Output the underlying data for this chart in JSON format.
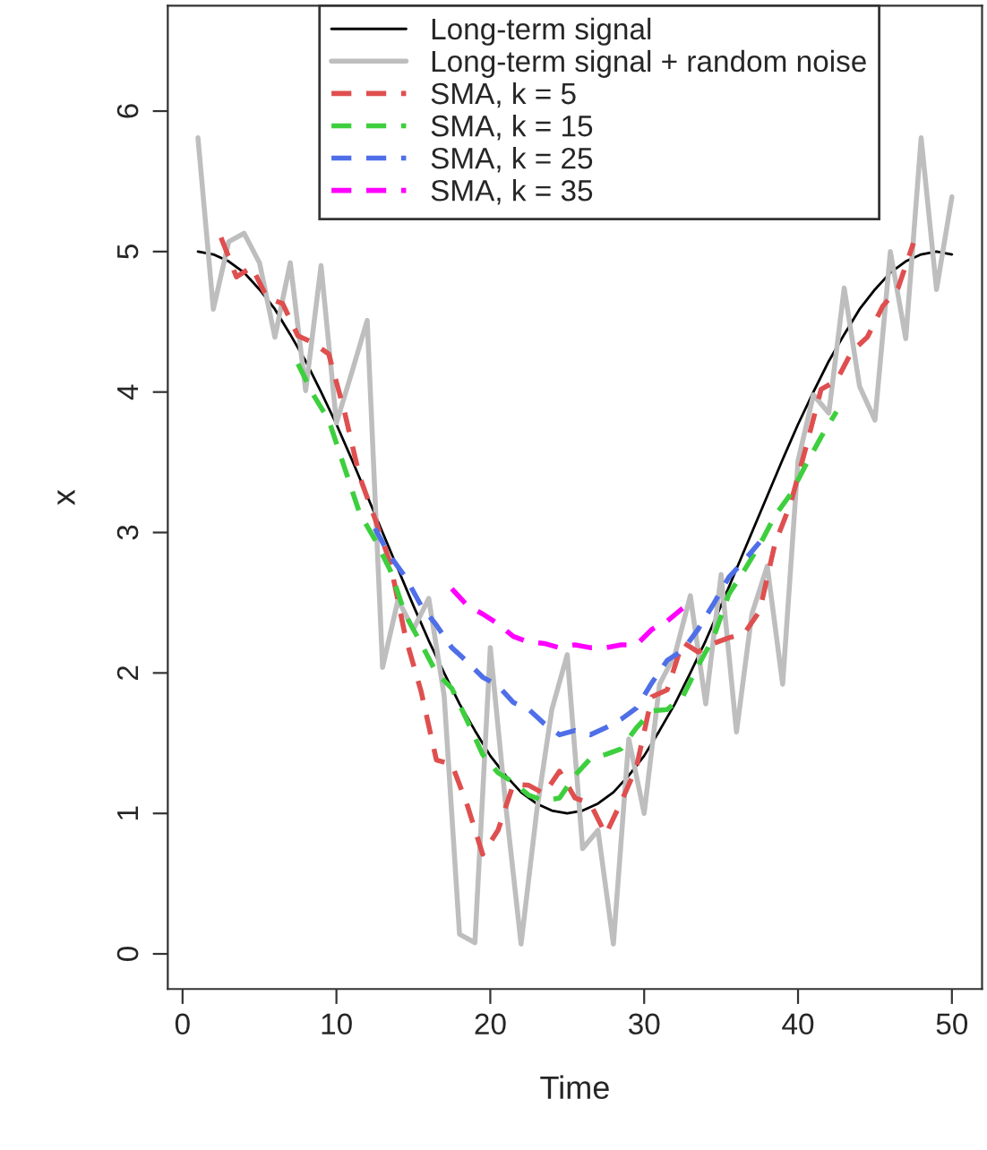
{
  "chart_data": {
    "type": "line",
    "xlabel": "Time",
    "ylabel": "x",
    "x": [
      1,
      2,
      3,
      4,
      5,
      6,
      7,
      8,
      9,
      10,
      11,
      12,
      13,
      14,
      15,
      16,
      17,
      18,
      19,
      20,
      21,
      22,
      23,
      24,
      25,
      26,
      27,
      28,
      29,
      30,
      31,
      32,
      33,
      34,
      35,
      36,
      37,
      38,
      39,
      40,
      41,
      42,
      43,
      44,
      45,
      46,
      47,
      48,
      49,
      50
    ],
    "xlim": [
      -0.96,
      51.96
    ],
    "xticks": [
      0,
      10,
      20,
      30,
      40,
      50
    ],
    "ylim": [
      -0.25,
      6.75
    ],
    "yticks": [
      0,
      1,
      2,
      3,
      4,
      5,
      6
    ],
    "grid": false,
    "legend": "top",
    "marker": "none",
    "series": [
      {
        "name": "Long-term signal",
        "color": "#000000",
        "line_style": "solid",
        "values": [
          5.0,
          4.98,
          4.93,
          4.85,
          4.73,
          4.59,
          4.41,
          4.22,
          4.0,
          3.77,
          3.52,
          3.26,
          3.0,
          2.74,
          2.48,
          2.23,
          2.0,
          1.78,
          1.59,
          1.41,
          1.27,
          1.15,
          1.07,
          1.02,
          1.0,
          1.02,
          1.07,
          1.15,
          1.27,
          1.41,
          1.59,
          1.78,
          2.0,
          2.23,
          2.48,
          2.74,
          3.0,
          3.26,
          3.52,
          3.77,
          4.0,
          4.22,
          4.41,
          4.59,
          4.73,
          4.85,
          4.93,
          4.98,
          5.0,
          4.98
        ]
      },
      {
        "name": "Long-term signal + random noise",
        "color": "#bebebe",
        "line_style": "solid",
        "values": [
          5.81,
          4.59,
          5.07,
          5.13,
          4.92,
          4.39,
          4.92,
          4.01,
          4.9,
          3.78,
          4.14,
          4.51,
          2.04,
          2.52,
          2.31,
          2.53,
          1.84,
          0.14,
          0.08,
          2.18,
          1.06,
          0.07,
          1.0,
          1.74,
          2.13,
          0.75,
          0.88,
          0.07,
          1.53,
          1.0,
          1.92,
          2.13,
          2.55,
          1.78,
          2.7,
          1.58,
          2.42,
          2.76,
          1.92,
          3.51,
          3.98,
          3.85,
          4.74,
          4.04,
          3.8,
          5.0,
          4.38,
          5.81,
          4.73,
          5.39
        ]
      },
      {
        "name": "SMA, k = 5",
        "color": "#df4f4f",
        "line_style": "dashed",
        "x": [
          2.5,
          3.5,
          4.5,
          5.5,
          6.5,
          7.5,
          8.5,
          9.5,
          10.5,
          11.5,
          12.5,
          13.5,
          14.5,
          15.5,
          16.5,
          17.5,
          18.5,
          19.5,
          20.5,
          21.5,
          22.5,
          23.5,
          24.5,
          25.5,
          26.5,
          27.5,
          28.5,
          29.5,
          30.5,
          31.5,
          32.5,
          33.5,
          34.5,
          35.5,
          36.5,
          37.5,
          38.5,
          39.5,
          40.5,
          41.5,
          42.5,
          43.5,
          44.5,
          45.5,
          46.5,
          47.5
        ],
        "values": [
          5.1,
          4.82,
          4.89,
          4.67,
          4.63,
          4.4,
          4.35,
          4.27,
          3.87,
          3.4,
          3.1,
          2.78,
          2.25,
          1.87,
          1.38,
          1.35,
          1.06,
          0.71,
          0.88,
          1.21,
          1.2,
          1.14,
          1.3,
          1.11,
          1.07,
          0.85,
          1.08,
          1.33,
          1.83,
          1.88,
          2.22,
          2.15,
          2.21,
          2.25,
          2.28,
          2.44,
          2.92,
          3.2,
          3.6,
          4.02,
          4.08,
          4.29,
          4.39,
          4.61,
          4.74,
          5.06
        ]
      },
      {
        "name": "SMA, k = 15",
        "color": "#3ecf3e",
        "line_style": "dashed",
        "x": [
          7.5,
          8.5,
          9.5,
          10.5,
          11.5,
          12.5,
          13.5,
          14.5,
          15.5,
          16.5,
          17.5,
          18.5,
          19.5,
          20.5,
          21.5,
          22.5,
          23.5,
          24.5,
          25.5,
          26.5,
          27.5,
          28.5,
          29.5,
          30.5,
          31.5,
          32.5,
          33.5,
          34.5,
          35.5,
          36.5,
          37.5,
          38.5,
          39.5,
          40.5,
          41.5,
          42.5
        ],
        "values": [
          4.2,
          3.98,
          3.8,
          3.47,
          3.14,
          2.95,
          2.73,
          2.41,
          2.21,
          2.0,
          1.89,
          1.66,
          1.42,
          1.29,
          1.22,
          1.13,
          1.09,
          1.11,
          1.27,
          1.39,
          1.42,
          1.46,
          1.61,
          1.73,
          1.74,
          1.83,
          2.05,
          2.25,
          2.56,
          2.73,
          2.91,
          3.12,
          3.27,
          3.48,
          3.68,
          3.86
        ]
      },
      {
        "name": "SMA, k = 25",
        "color": "#4f6fe8",
        "line_style": "dashed",
        "x": [
          12.5,
          13.5,
          14.5,
          15.5,
          16.5,
          17.5,
          18.5,
          19.5,
          20.5,
          21.5,
          22.5,
          23.5,
          24.5,
          25.5,
          26.5,
          27.5,
          28.5,
          29.5,
          30.5,
          31.5,
          32.5,
          33.5,
          34.5,
          35.5,
          36.5,
          37.5
        ],
        "values": [
          3.03,
          2.83,
          2.68,
          2.48,
          2.34,
          2.18,
          2.08,
          1.97,
          1.91,
          1.79,
          1.74,
          1.64,
          1.56,
          1.59,
          1.56,
          1.61,
          1.67,
          1.75,
          1.93,
          2.09,
          2.16,
          2.31,
          2.49,
          2.68,
          2.8,
          2.93
        ]
      },
      {
        "name": "SMA, k = 35",
        "color": "#ff00ff",
        "line_style": "dashed",
        "x": [
          17.5,
          18.5,
          19.5,
          20.5,
          21.5,
          22.5,
          23.5,
          24.5,
          25.5,
          26.5,
          27.5,
          28.5,
          29.5,
          30.5,
          31.5,
          32.5
        ],
        "values": [
          2.6,
          2.48,
          2.42,
          2.35,
          2.26,
          2.22,
          2.21,
          2.18,
          2.2,
          2.18,
          2.18,
          2.2,
          2.2,
          2.31,
          2.37,
          2.46
        ]
      }
    ]
  }
}
